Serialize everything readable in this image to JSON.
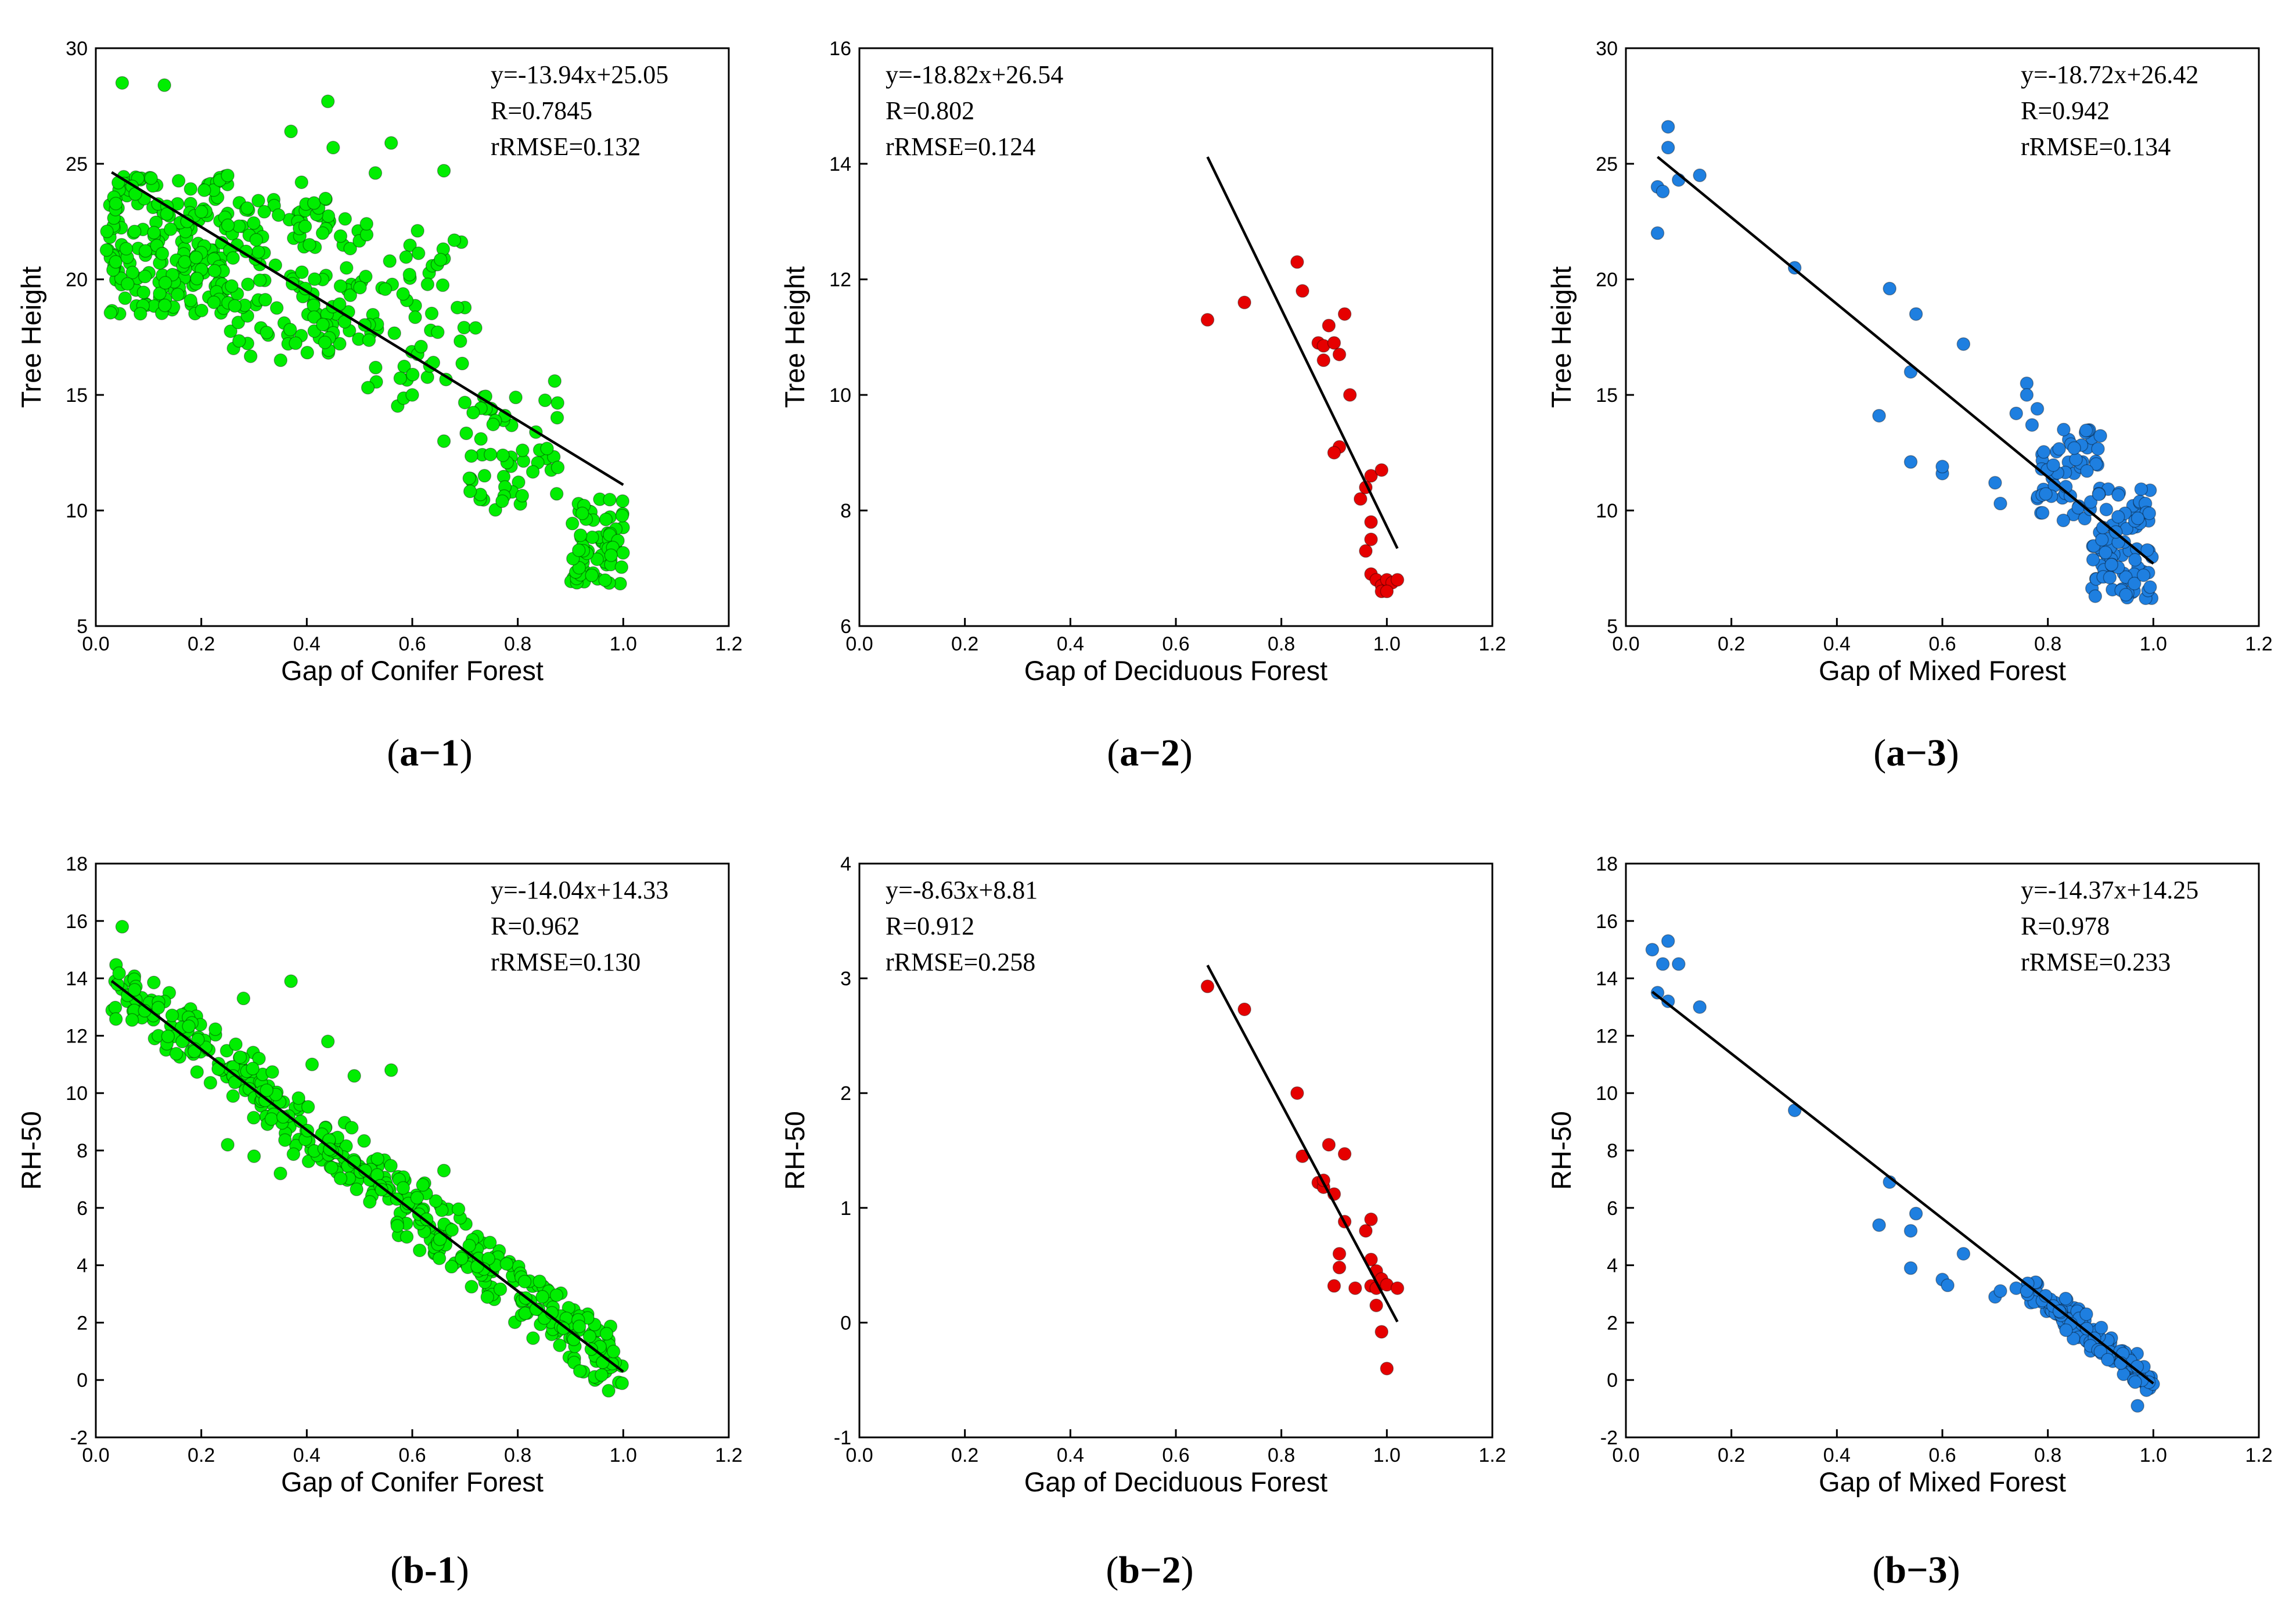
{
  "colors": {
    "conifer": "#00ee00",
    "deciduous": "#e60000",
    "mixed": "#1e7fe0",
    "axis": "#000000",
    "fit_line": "#000000"
  },
  "chart_data": [
    {
      "id": "a1",
      "type": "scatter",
      "caption_label": "a−1",
      "xlabel": "Gap of Conifer Forest",
      "ylabel": "Tree Height",
      "xlim": [
        0.0,
        1.2
      ],
      "ylim": [
        5,
        30
      ],
      "x_ticks": [
        "0.0",
        "0.2",
        "0.4",
        "0.6",
        "0.8",
        "1.0",
        "1.2"
      ],
      "y_ticks": [
        "5",
        "10",
        "15",
        "20",
        "25",
        "30"
      ],
      "fit": {
        "slope": -13.94,
        "intercept": 25.05,
        "x_range": [
          0.03,
          1.0
        ]
      },
      "stats": [
        "y=-13.94x+25.05",
        "R=0.7845",
        "rRMSE=0.132"
      ],
      "stats_pos": "top-right",
      "color_key": "conifer",
      "points": {
        "cloud": [
          {
            "x": [
              0.02,
              0.25
            ],
            "y": [
              18.5,
              24.5
            ],
            "n": 210
          },
          {
            "x": [
              0.25,
              0.5
            ],
            "y": [
              16.5,
              23.5
            ],
            "n": 130
          },
          {
            "x": [
              0.5,
              0.7
            ],
            "y": [
              14.5,
              22.5
            ],
            "n": 60
          },
          {
            "x": [
              0.7,
              0.88
            ],
            "y": [
              10,
              15
            ],
            "n": 55
          },
          {
            "x": [
              0.9,
              1.0
            ],
            "y": [
              6.8,
              10.5
            ],
            "n": 70
          }
        ],
        "extra": [
          [
            0.05,
            28.5
          ],
          [
            0.13,
            28.4
          ],
          [
            0.44,
            27.7
          ],
          [
            0.37,
            26.4
          ],
          [
            0.45,
            25.7
          ],
          [
            0.56,
            25.9
          ],
          [
            0.66,
            24.7
          ],
          [
            0.53,
            24.6
          ],
          [
            0.39,
            24.2
          ],
          [
            0.61,
            22.1
          ],
          [
            0.43,
            22.0
          ],
          [
            0.87,
            15.6
          ],
          [
            0.72,
            17.9
          ],
          [
            0.64,
            16.4
          ],
          [
            0.6,
            15.0
          ],
          [
            0.66,
            13.0
          ]
        ]
      }
    },
    {
      "id": "a2",
      "type": "scatter",
      "caption_label": "a−2",
      "xlabel": "Gap of Deciduous Forest",
      "ylabel": "Tree Height",
      "xlim": [
        0.0,
        1.2
      ],
      "ylim": [
        6,
        16
      ],
      "x_ticks": [
        "0.0",
        "0.2",
        "0.4",
        "0.6",
        "0.8",
        "1.0",
        "1.2"
      ],
      "y_ticks": [
        "6",
        "8",
        "10",
        "12",
        "14",
        "16"
      ],
      "fit": {
        "slope": -18.82,
        "intercept": 26.54,
        "x_range": [
          0.66,
          1.02
        ]
      },
      "stats": [
        "y=-18.82x+26.54",
        "R=0.802",
        "rRMSE=0.124"
      ],
      "stats_pos": "top-left",
      "color_key": "deciduous",
      "points": {
        "cloud": [],
        "extra": [
          [
            0.66,
            11.3
          ],
          [
            0.73,
            11.6
          ],
          [
            0.83,
            12.3
          ],
          [
            0.84,
            11.8
          ],
          [
            0.87,
            10.9
          ],
          [
            0.88,
            10.85
          ],
          [
            0.88,
            10.6
          ],
          [
            0.89,
            11.2
          ],
          [
            0.9,
            10.9
          ],
          [
            0.92,
            11.4
          ],
          [
            0.91,
            10.7
          ],
          [
            0.93,
            10.0
          ],
          [
            0.91,
            9.1
          ],
          [
            0.9,
            9.0
          ],
          [
            0.95,
            8.2
          ],
          [
            0.96,
            8.4
          ],
          [
            0.97,
            8.6
          ],
          [
            0.99,
            8.7
          ],
          [
            0.97,
            7.8
          ],
          [
            0.96,
            7.3
          ],
          [
            0.97,
            7.5
          ],
          [
            0.97,
            6.9
          ],
          [
            0.98,
            6.8
          ],
          [
            0.99,
            6.7
          ],
          [
            1.0,
            6.8
          ],
          [
            1.01,
            6.75
          ],
          [
            1.02,
            6.8
          ],
          [
            0.99,
            6.6
          ],
          [
            1.0,
            6.6
          ]
        ]
      }
    },
    {
      "id": "a3",
      "type": "scatter",
      "caption_label": "a−3",
      "xlabel": "Gap of Mixed Forest",
      "ylabel": "Tree Height",
      "xlim": [
        0.0,
        1.2
      ],
      "ylim": [
        5,
        30
      ],
      "x_ticks": [
        "0.0",
        "0.2",
        "0.4",
        "0.6",
        "0.8",
        "1.0",
        "1.2"
      ],
      "y_ticks": [
        "5",
        "10",
        "15",
        "20",
        "25",
        "30"
      ],
      "fit": {
        "slope": -18.72,
        "intercept": 26.42,
        "x_range": [
          0.06,
          1.0
        ]
      },
      "stats": [
        "y=-18.72x+26.42",
        "R=0.942",
        "rRMSE=0.134"
      ],
      "stats_pos": "top-right",
      "color_key": "mixed",
      "points": {
        "cloud": [
          {
            "x": [
              0.78,
              0.9
            ],
            "y": [
              9.5,
              13.5
            ],
            "n": 50
          },
          {
            "x": [
              0.88,
              1.0
            ],
            "y": [
              6.2,
              11
            ],
            "n": 90
          }
        ],
        "extra": [
          [
            0.06,
            24.0
          ],
          [
            0.06,
            22.0
          ],
          [
            0.07,
            23.8
          ],
          [
            0.08,
            25.7
          ],
          [
            0.08,
            26.6
          ],
          [
            0.1,
            24.3
          ],
          [
            0.14,
            24.5
          ],
          [
            0.32,
            20.5
          ],
          [
            0.5,
            19.6
          ],
          [
            0.55,
            18.5
          ],
          [
            0.54,
            16.0
          ],
          [
            0.64,
            17.2
          ],
          [
            0.48,
            14.1
          ],
          [
            0.54,
            12.1
          ],
          [
            0.6,
            11.6
          ],
          [
            0.6,
            11.9
          ],
          [
            0.7,
            11.2
          ],
          [
            0.71,
            10.3
          ],
          [
            0.76,
            15.5
          ],
          [
            0.76,
            15.0
          ],
          [
            0.78,
            14.4
          ],
          [
            0.74,
            14.2
          ],
          [
            0.77,
            13.7
          ],
          [
            0.83,
            13.5
          ],
          [
            0.85,
            12.7
          ],
          [
            0.79,
            9.9
          ]
        ]
      }
    },
    {
      "id": "b1",
      "type": "scatter",
      "caption_label": "b-1",
      "xlabel": "Gap of Conifer Forest",
      "ylabel": "RH-50",
      "xlim": [
        0.0,
        1.2
      ],
      "ylim": [
        -2,
        18
      ],
      "x_ticks": [
        "0.0",
        "0.2",
        "0.4",
        "0.6",
        "0.8",
        "1.0",
        "1.2"
      ],
      "y_ticks": [
        "-2",
        "0",
        "2",
        "4",
        "6",
        "8",
        "10",
        "12",
        "14",
        "16",
        "18"
      ],
      "fit": {
        "slope": -14.04,
        "intercept": 14.33,
        "x_range": [
          0.03,
          1.0
        ]
      },
      "stats": [
        "y=-14.04x+14.33",
        "R=0.962",
        "rRMSE=0.130"
      ],
      "stats_pos": "top-right",
      "color_key": "conifer",
      "points": {
        "line_band": {
          "x": [
            0.03,
            1.0
          ],
          "spread": 1.4,
          "n": 430
        },
        "extra": [
          [
            0.05,
            15.8
          ],
          [
            0.37,
            13.9
          ],
          [
            0.28,
            13.3
          ],
          [
            0.44,
            11.8
          ],
          [
            0.56,
            10.8
          ],
          [
            0.49,
            10.6
          ],
          [
            0.41,
            11.0
          ],
          [
            0.66,
            7.3
          ],
          [
            0.62,
            6.8
          ],
          [
            0.3,
            7.8
          ],
          [
            0.35,
            7.2
          ],
          [
            0.25,
            8.2
          ]
        ]
      }
    },
    {
      "id": "b2",
      "type": "scatter",
      "caption_label": "b−2",
      "xlabel": "Gap of Deciduous Forest",
      "ylabel": "RH-50",
      "xlim": [
        0.0,
        1.2
      ],
      "ylim": [
        -1,
        4
      ],
      "x_ticks": [
        "0.0",
        "0.2",
        "0.4",
        "0.6",
        "0.8",
        "1.0",
        "1.2"
      ],
      "y_ticks": [
        "-1",
        "0",
        "1",
        "2",
        "3",
        "4"
      ],
      "fit": {
        "slope": -8.63,
        "intercept": 8.81,
        "x_range": [
          0.66,
          1.02
        ]
      },
      "stats": [
        "y=-8.63x+8.81",
        "R=0.912",
        "rRMSE=0.258"
      ],
      "stats_pos": "top-left",
      "color_key": "deciduous",
      "points": {
        "cloud": [],
        "extra": [
          [
            0.66,
            2.93
          ],
          [
            0.73,
            2.73
          ],
          [
            0.83,
            2.0
          ],
          [
            0.84,
            1.45
          ],
          [
            0.87,
            1.22
          ],
          [
            0.88,
            1.18
          ],
          [
            0.88,
            1.24
          ],
          [
            0.89,
            1.55
          ],
          [
            0.9,
            1.12
          ],
          [
            0.92,
            1.47
          ],
          [
            0.91,
            0.6
          ],
          [
            0.92,
            0.88
          ],
          [
            0.91,
            0.48
          ],
          [
            0.9,
            0.32
          ],
          [
            0.94,
            0.3
          ],
          [
            0.96,
            0.8
          ],
          [
            0.97,
            0.9
          ],
          [
            0.97,
            0.55
          ],
          [
            0.98,
            0.45
          ],
          [
            0.97,
            0.32
          ],
          [
            0.98,
            0.3
          ],
          [
            0.99,
            0.38
          ],
          [
            1.0,
            0.33
          ],
          [
            1.02,
            0.3
          ],
          [
            0.98,
            0.15
          ],
          [
            0.99,
            -0.08
          ],
          [
            1.0,
            -0.4
          ]
        ]
      }
    },
    {
      "id": "b3",
      "type": "scatter",
      "caption_label": "b−3",
      "xlabel": "Gap of Mixed Forest",
      "ylabel": "RH-50",
      "xlim": [
        0.0,
        1.2
      ],
      "ylim": [
        -2,
        18
      ],
      "x_ticks": [
        "0.0",
        "0.2",
        "0.4",
        "0.6",
        "0.8",
        "1.0",
        "1.2"
      ],
      "y_ticks": [
        "-2",
        "0",
        "2",
        "4",
        "6",
        "8",
        "10",
        "12",
        "14",
        "16",
        "18"
      ],
      "fit": {
        "slope": -14.37,
        "intercept": 14.25,
        "x_range": [
          0.05,
          1.0
        ]
      },
      "stats": [
        "y=-14.37x+14.25",
        "R=0.978",
        "rRMSE=0.233"
      ],
      "stats_pos": "top-right",
      "color_key": "mixed",
      "points": {
        "line_band": {
          "x": [
            0.76,
            1.0
          ],
          "spread": 0.7,
          "n": 140
        },
        "extra": [
          [
            0.05,
            15.0
          ],
          [
            0.06,
            13.5
          ],
          [
            0.07,
            14.5
          ],
          [
            0.08,
            15.3
          ],
          [
            0.08,
            13.2
          ],
          [
            0.1,
            14.5
          ],
          [
            0.14,
            13.0
          ],
          [
            0.32,
            9.4
          ],
          [
            0.5,
            6.9
          ],
          [
            0.48,
            5.4
          ],
          [
            0.55,
            5.8
          ],
          [
            0.54,
            5.2
          ],
          [
            0.54,
            3.9
          ],
          [
            0.6,
            3.5
          ],
          [
            0.61,
            3.3
          ],
          [
            0.64,
            4.4
          ],
          [
            0.7,
            2.9
          ],
          [
            0.71,
            3.1
          ],
          [
            0.74,
            3.2
          ],
          [
            0.76,
            3.1
          ],
          [
            0.97,
            -0.9
          ]
        ]
      }
    }
  ]
}
